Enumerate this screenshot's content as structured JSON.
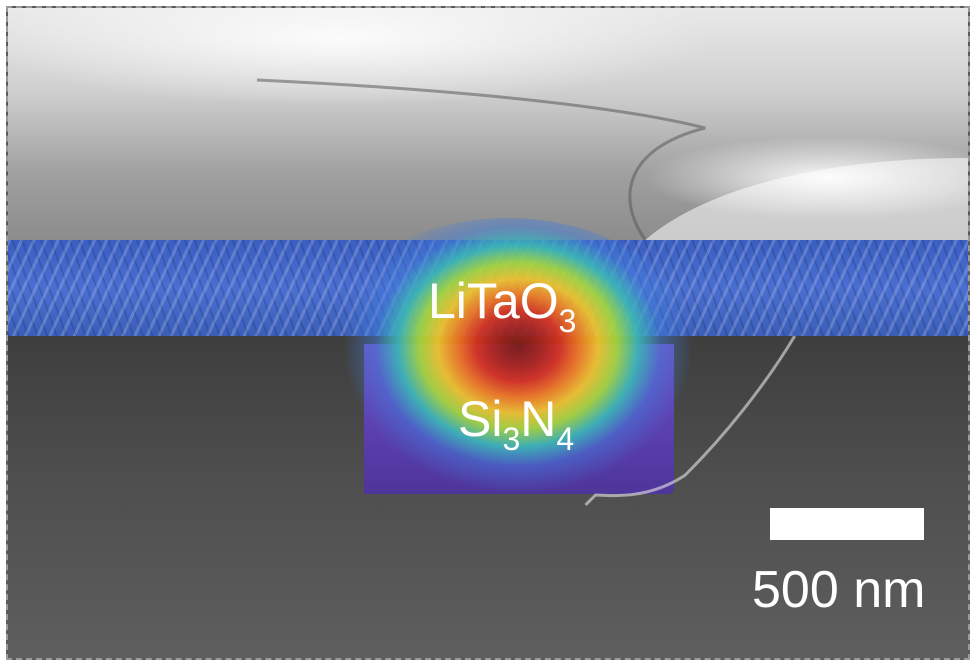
{
  "image": {
    "layers": {
      "film_label_main": "LiTaO",
      "film_label_sub": "3",
      "waveguide_label_si": "Si",
      "waveguide_label_si_sub": "3",
      "waveguide_label_n": "N",
      "waveguide_label_n_sub": "4"
    },
    "scale_bar": {
      "label": "500 nm"
    },
    "colors": {
      "film": "#4a6fd0",
      "waveguide": "#5a3fae",
      "substrate": "#4d4d4d",
      "mode_peak": "#a8231b"
    }
  }
}
